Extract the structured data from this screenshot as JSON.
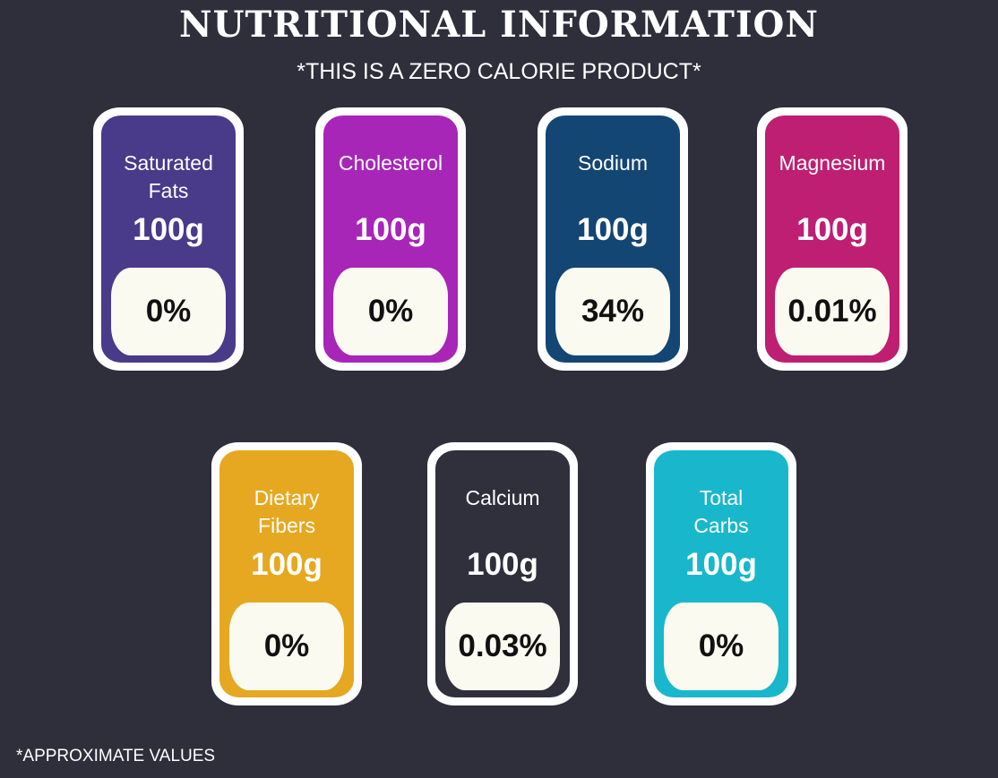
{
  "header": {
    "title": "NUTRITIONAL INFORMATION",
    "subtitle": "*THIS IS A ZERO CALORIE PRODUCT*"
  },
  "footnote": "*APPROXIMATE VALUES",
  "nutrients": [
    {
      "name": "Saturated Fats",
      "amount": "100g",
      "percent": "0%",
      "color": "#4a3a8a"
    },
    {
      "name": "Cholesterol",
      "amount": "100g",
      "percent": "0%",
      "color": "#a726b8"
    },
    {
      "name": "Sodium",
      "amount": "100g",
      "percent": "34%",
      "color": "#134673"
    },
    {
      "name": "Magnesium",
      "amount": "100g",
      "percent": "0.01%",
      "color": "#be1f72"
    },
    {
      "name": "Dietary Fibers",
      "amount": "100g",
      "percent": "0%",
      "color": "#e6a821"
    },
    {
      "name": "Calcium",
      "amount": "100g",
      "percent": "0.03%",
      "color": "#302f3c"
    },
    {
      "name": "Total Carbs",
      "amount": "100g",
      "percent": "0%",
      "color": "#19b7cb"
    }
  ]
}
